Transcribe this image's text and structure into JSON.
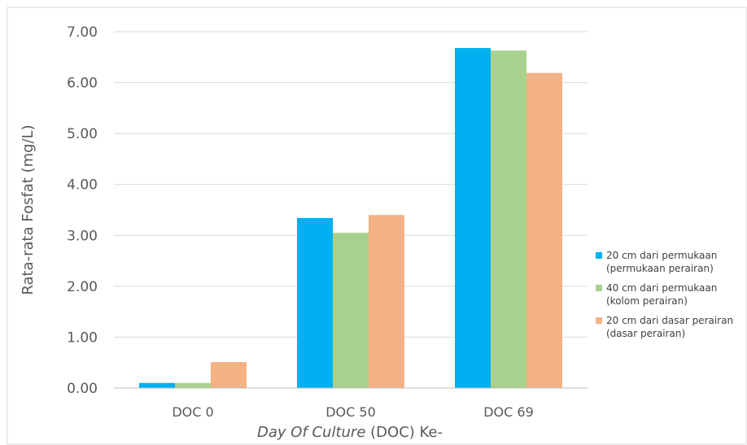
{
  "chart_data": {
    "type": "bar",
    "title": "",
    "categories": [
      "DOC 0",
      "DOC 50",
      "DOC 69"
    ],
    "series": [
      {
        "name": "20 cm dari permukaan (permukaan perairan)",
        "legend_lines": [
          "20 cm dari permukaan",
          "(permukaan perairan)"
        ],
        "color": "#00b0f0",
        "values": [
          0.1,
          3.34,
          6.68
        ]
      },
      {
        "name": "40 cm dari permukaan (kolom perairan)",
        "legend_lines": [
          "40 cm dari permukaan",
          "(kolom perairan)"
        ],
        "color": "#a9d18e",
        "values": [
          0.1,
          3.05,
          6.63
        ]
      },
      {
        "name": "20 cm dari dasar perairan (dasar perairan)",
        "legend_lines": [
          "20 cm dari dasar perairan",
          "(dasar perairan)"
        ],
        "color": "#f4b183",
        "values": [
          0.51,
          3.4,
          6.19
        ]
      }
    ],
    "ylabel": "Rata-rata Fosfat (mg/L)",
    "xlabel_italic": "Day Of Culture",
    "xlabel_rest": " (DOC) Ke-",
    "ylim": [
      0,
      7
    ],
    "yticks": [
      "0.00",
      "1.00",
      "2.00",
      "3.00",
      "4.00",
      "5.00",
      "6.00",
      "7.00"
    ],
    "grid": "horizontal",
    "legend_position": "right"
  }
}
